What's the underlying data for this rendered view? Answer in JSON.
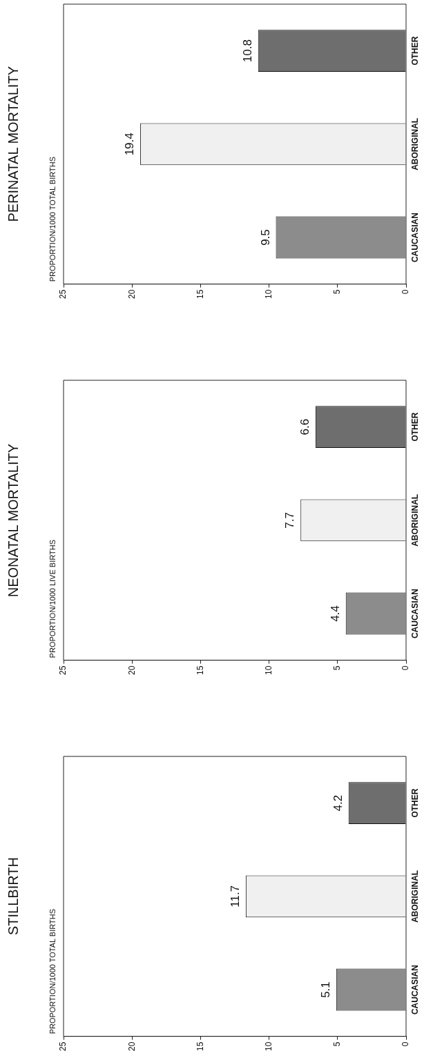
{
  "chart_data": [
    {
      "type": "bar",
      "orientation": "horizontal",
      "title": "PERINATAL MORTALITY",
      "annotations": [
        "PROPORTION/1000 TOTAL BIRTHS"
      ],
      "categories": [
        "OTHER",
        "ABORIGINAL",
        "CAUCASIAN"
      ],
      "values": [
        10.8,
        19.4,
        9.5
      ],
      "colors": [
        "#6e6e6e",
        "#f0f0f0",
        "#8c8c8c"
      ],
      "xlim": [
        25,
        0
      ],
      "xticks": [
        0,
        5,
        10,
        15,
        20,
        25
      ],
      "data_labels": true,
      "grid": false,
      "legend": false
    },
    {
      "type": "bar",
      "orientation": "horizontal",
      "title": "NEONATAL MORTALITY",
      "annotations": [
        "PROPORTION/1000 LIVE BIRTHS"
      ],
      "categories": [
        "OTHER",
        "ABORIGINAL",
        "CAUCASIAN"
      ],
      "values": [
        6.6,
        7.7,
        4.4
      ],
      "colors": [
        "#6e6e6e",
        "#f0f0f0",
        "#8c8c8c"
      ],
      "xlim": [
        25,
        0
      ],
      "xticks": [
        0,
        5,
        10,
        15,
        20,
        25
      ],
      "data_labels": true,
      "grid": false,
      "legend": false
    },
    {
      "type": "bar",
      "orientation": "horizontal",
      "title": "STILLBIRTH",
      "annotations": [
        "PROPORTION/1000 TOTAL BIRTHS"
      ],
      "categories": [
        "OTHER",
        "ABORIGINAL",
        "CAUCASIAN"
      ],
      "values": [
        4.2,
        11.7,
        5.1
      ],
      "colors": [
        "#6e6e6e",
        "#f0f0f0",
        "#8c8c8c"
      ],
      "xlim": [
        25,
        0
      ],
      "xticks": [
        0,
        5,
        10,
        15,
        20,
        25
      ],
      "data_labels": true,
      "grid": false,
      "legend": false
    }
  ]
}
